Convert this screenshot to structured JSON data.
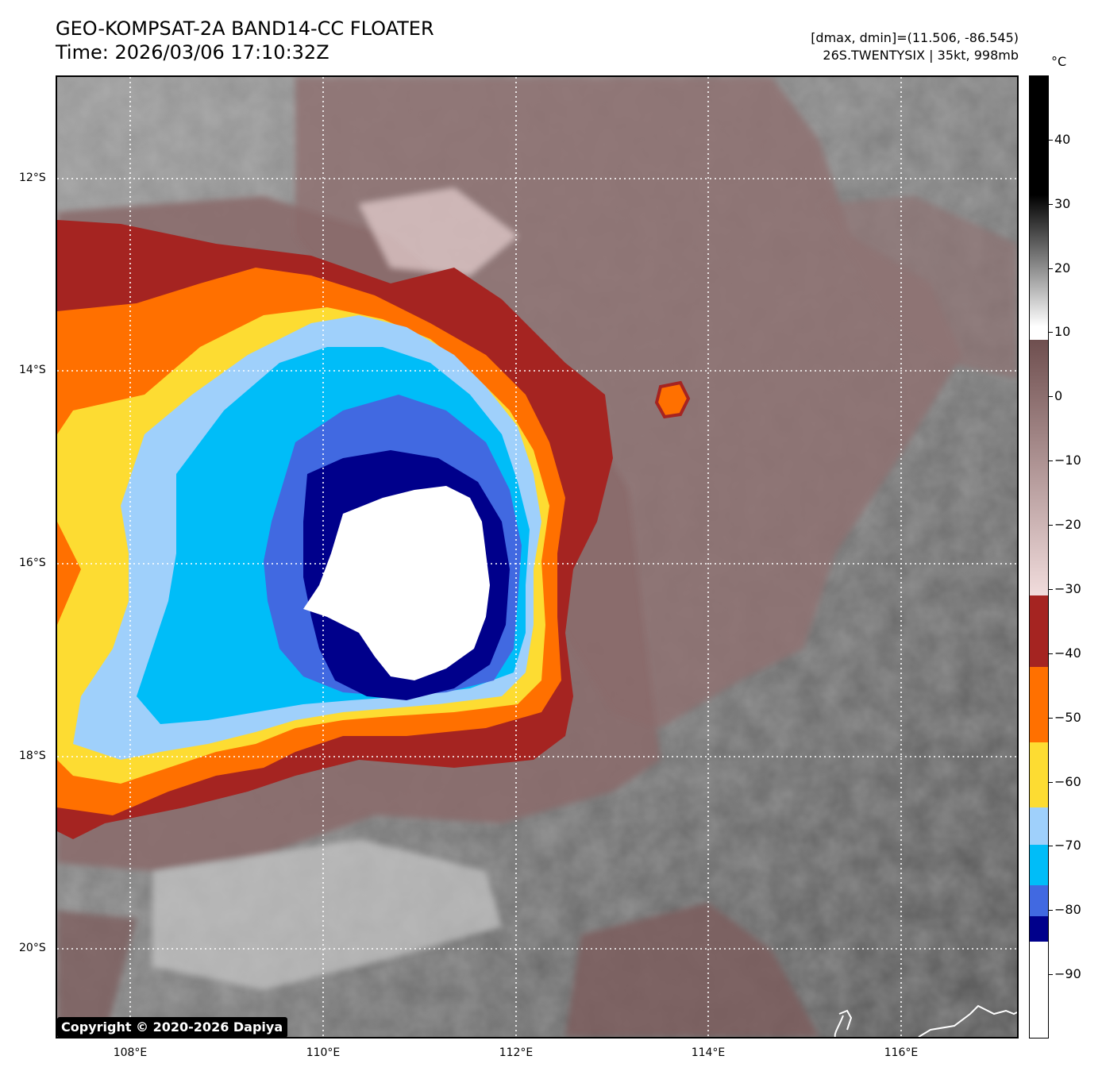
{
  "header": {
    "title_line1": "GEO-KOMPSAT-2A BAND14-CC FLOATER",
    "title_line2": "Time: 2026/03/06 17:10:32Z",
    "info_line1": "[dmax, dmin]=(11.506, -86.545)",
    "info_line2": "26S.TWENTYSIX | 35kt, 998mb"
  },
  "map": {
    "lat_labels": [
      "12°S",
      "14°S",
      "16°S",
      "18°S",
      "20°S"
    ],
    "lon_labels": [
      "108°E",
      "110°E",
      "112°E",
      "114°E",
      "116°E"
    ],
    "gridlines": "dotted white",
    "copyright": "Copyright © 2020-2026 Dapiya"
  },
  "colorbar": {
    "unit": "°C",
    "ticks": [
      "40",
      "30",
      "20",
      "10",
      "0",
      "−10",
      "−20",
      "−30",
      "−40",
      "−50",
      "−60",
      "−70",
      "−80",
      "−90"
    ],
    "range": [
      -100,
      50
    ],
    "colors": {
      "warm_top": "#000000",
      "warm_mid": "#ffffff",
      "brown": "#6f4f4f",
      "pink": "#f1dcdc",
      "dark_red": "#a52421",
      "orange": "#ff7000",
      "yellow": "#fddc32",
      "light_blue": "#9fd0fb",
      "sky_blue": "#00bdf8",
      "royal_blue": "#4169e1",
      "navy": "#00008b",
      "white_core": "#ffffff"
    }
  }
}
